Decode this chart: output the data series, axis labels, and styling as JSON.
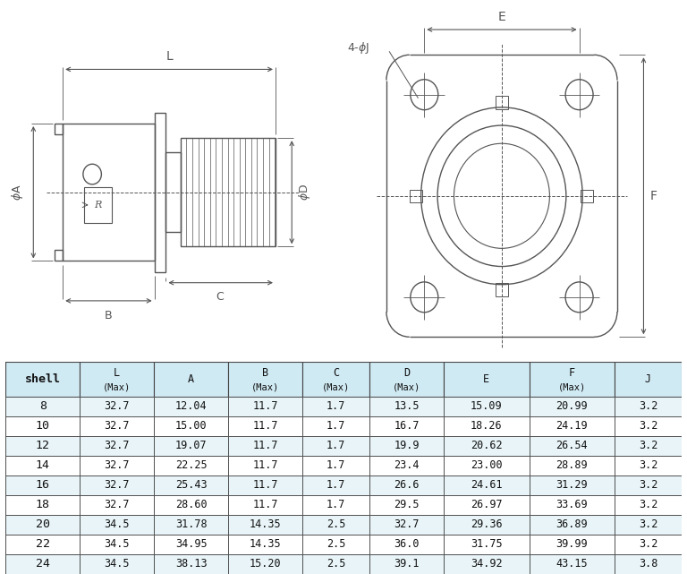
{
  "table_headers_line1": [
    "shell",
    "L",
    "A",
    "B",
    "C",
    "D",
    "E",
    "F",
    "J"
  ],
  "table_headers_line2": [
    "",
    "(Max)",
    "",
    "(Max)",
    "(Max)",
    "(Max)",
    "",
    "(Max)",
    ""
  ],
  "table_data": [
    [
      "8",
      "32.7",
      "12.04",
      "11.7",
      "1.7",
      "13.5",
      "15.09",
      "20.99",
      "3.2"
    ],
    [
      "10",
      "32.7",
      "15.00",
      "11.7",
      "1.7",
      "16.7",
      "18.26",
      "24.19",
      "3.2"
    ],
    [
      "12",
      "32.7",
      "19.07",
      "11.7",
      "1.7",
      "19.9",
      "20.62",
      "26.54",
      "3.2"
    ],
    [
      "14",
      "32.7",
      "22.25",
      "11.7",
      "1.7",
      "23.4",
      "23.00",
      "28.89",
      "3.2"
    ],
    [
      "16",
      "32.7",
      "25.43",
      "11.7",
      "1.7",
      "26.6",
      "24.61",
      "31.29",
      "3.2"
    ],
    [
      "18",
      "32.7",
      "28.60",
      "11.7",
      "1.7",
      "29.5",
      "26.97",
      "33.69",
      "3.2"
    ],
    [
      "20",
      "34.5",
      "31.78",
      "14.35",
      "2.5",
      "32.7",
      "29.36",
      "36.89",
      "3.2"
    ],
    [
      "22",
      "34.5",
      "34.95",
      "14.35",
      "2.5",
      "36.0",
      "31.75",
      "39.99",
      "3.2"
    ],
    [
      "24",
      "34.5",
      "38.13",
      "15.20",
      "2.5",
      "39.1",
      "34.92",
      "43.15",
      "3.8"
    ]
  ],
  "bg_color": "#ffffff",
  "header_bg": "#d0eaf4",
  "row_bg_even": "#e8f4f8",
  "row_bg_odd": "#ffffff",
  "border_color": "#444444",
  "text_color": "#111111",
  "lc": "#555555"
}
